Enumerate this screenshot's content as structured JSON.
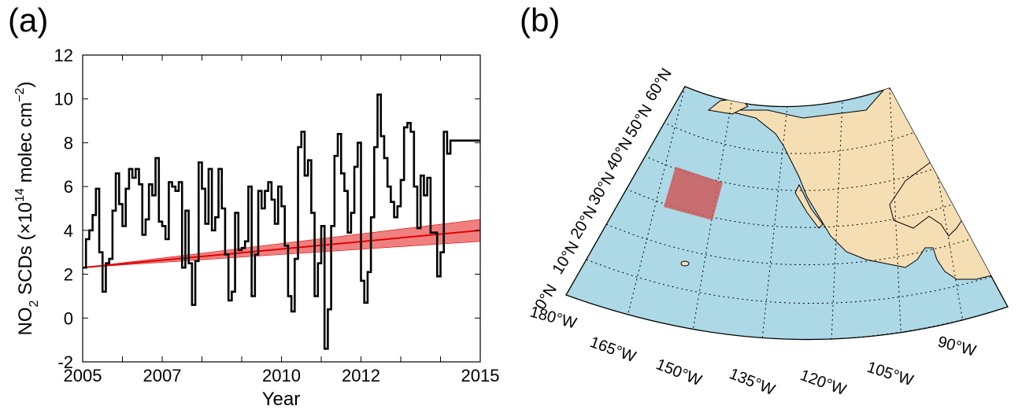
{
  "panel_a": {
    "label": "(a)"
  },
  "panel_b": {
    "label": "(b)"
  },
  "chart_data": {
    "type": "line",
    "title": "",
    "xlabel": "Year",
    "ylabel": {
      "main": "NO",
      "sub": "2",
      "rest": " SCDs (×10",
      "sup1": "14",
      "unit": " molec cm",
      "sup2": "−2",
      "close": ")"
    },
    "xlim": [
      2005,
      2015
    ],
    "ylim": [
      -2,
      12
    ],
    "xticks": [
      2005,
      2007,
      2010,
      2012,
      2015
    ],
    "yticks": [
      -2,
      0,
      2,
      4,
      6,
      8,
      10,
      12
    ],
    "grid": false,
    "legend": "none",
    "colors": {
      "series": "#000000",
      "trend": "#e00000",
      "band": "#f08080"
    },
    "series": [
      {
        "style": "step",
        "x": [
          2005.0,
          2005.083,
          2005.167,
          2005.25,
          2005.333,
          2005.417,
          2005.5,
          2005.583,
          2005.667,
          2005.75,
          2005.833,
          2005.917,
          2006.0,
          2006.083,
          2006.167,
          2006.25,
          2006.333,
          2006.417,
          2006.5,
          2006.583,
          2006.667,
          2006.75,
          2006.833,
          2006.917,
          2007.0,
          2007.083,
          2007.167,
          2007.25,
          2007.333,
          2007.417,
          2007.5,
          2007.583,
          2007.667,
          2007.75,
          2007.833,
          2007.917,
          2008.0,
          2008.083,
          2008.167,
          2008.25,
          2008.333,
          2008.417,
          2008.5,
          2008.583,
          2008.667,
          2008.75,
          2008.833,
          2008.917,
          2009.0,
          2009.083,
          2009.167,
          2009.25,
          2009.333,
          2009.417,
          2009.5,
          2009.583,
          2009.667,
          2009.75,
          2009.833,
          2009.917,
          2010.0,
          2010.083,
          2010.167,
          2010.25,
          2010.333,
          2010.417,
          2010.5,
          2010.583,
          2010.667,
          2010.75,
          2010.833,
          2010.917,
          2011.0,
          2011.083,
          2011.167,
          2011.25,
          2011.333,
          2011.417,
          2011.5,
          2011.583,
          2011.667,
          2011.75,
          2011.833,
          2011.917,
          2012.0,
          2012.083,
          2012.167,
          2012.25,
          2012.333,
          2012.417,
          2012.5,
          2012.583,
          2012.667,
          2012.75,
          2012.833,
          2012.917,
          2013.0,
          2013.083,
          2013.167,
          2013.25,
          2013.333,
          2013.417,
          2013.5,
          2013.583,
          2013.667,
          2013.75,
          2013.833,
          2013.917,
          2014.0,
          2014.083,
          2014.167,
          2014.25,
          2014.333,
          2014.417,
          2014.5,
          2014.583,
          2014.667,
          2014.75,
          2014.833,
          2014.917
        ],
        "y": [
          2.3,
          3.6,
          4.0,
          4.7,
          5.9,
          3.0,
          1.2,
          2.5,
          2.7,
          4.9,
          6.6,
          5.2,
          4.2,
          5.9,
          6.8,
          6.4,
          6.8,
          6.1,
          3.8,
          4.5,
          6.1,
          5.6,
          7.3,
          4.4,
          4.2,
          3.6,
          6.2,
          6.0,
          5.8,
          6.2,
          2.3,
          4.9,
          2.5,
          0.6,
          2.6,
          7.1,
          5.9,
          4.3,
          6.8,
          4.0,
          4.6,
          6.8,
          5.0,
          2.9,
          0.8,
          1.2,
          4.8,
          3.1,
          3.2,
          3.5,
          6.0,
          1.0,
          2.9,
          5.8,
          5.0,
          5.8,
          6.2,
          5.4,
          4.3,
          6.0,
          5.1,
          3.3,
          1.0,
          0.3,
          2.7,
          7.8,
          8.5,
          6.5,
          7.2,
          4.8,
          1.0,
          2.5,
          4.2,
          -1.4,
          0.4,
          4.2,
          7.4,
          8.4,
          6.6,
          5.8,
          3.9,
          4.8,
          6.9,
          8.0,
          1.7,
          0.7,
          2.1,
          4.6,
          7.8,
          10.2,
          8.3,
          7.3,
          6.0,
          5.3,
          4.6,
          5.1,
          6.3,
          8.7,
          8.9,
          8.5,
          6.0,
          4.1,
          6.5,
          5.6,
          6.4,
          3.9,
          3.9,
          1.9,
          3.0,
          8.5,
          7.5,
          8.1,
          8.1,
          8.1,
          8.1,
          8.1,
          8.1,
          8.1,
          8.1,
          8.1
        ]
      }
    ],
    "trend": {
      "x": [
        2005,
        2015
      ],
      "y": [
        2.3,
        4.0
      ],
      "band_upper": [
        2.3,
        4.5
      ],
      "band_lower": [
        2.3,
        3.5
      ]
    }
  },
  "map": {
    "colors": {
      "ocean": "#add8e6",
      "land": "#f5deb3",
      "box": "#cd5c5c"
    },
    "lat_labels": [
      "0°N",
      "10°N",
      "20°N",
      "30°N",
      "40°N",
      "50°N",
      "60°N"
    ],
    "lon_labels": [
      "180°W",
      "165°W",
      "150°W",
      "135°W",
      "120°W",
      "105°W",
      "90°W"
    ],
    "region_box": {
      "lat_min": 30,
      "lat_max": 40,
      "lon_min": -150,
      "lon_max": -140
    }
  }
}
